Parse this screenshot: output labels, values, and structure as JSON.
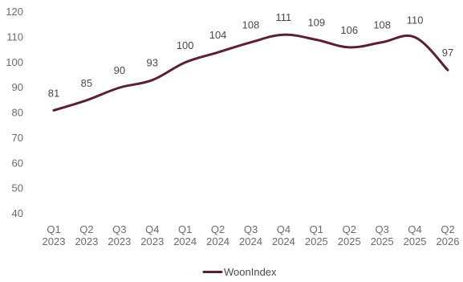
{
  "chart_data": {
    "type": "line",
    "title": "",
    "xlabel": "",
    "ylabel": "",
    "categories": [
      [
        "Q1",
        "2023"
      ],
      [
        "Q2",
        "2023"
      ],
      [
        "Q3",
        "2023"
      ],
      [
        "Q4",
        "2023"
      ],
      [
        "Q1",
        "2024"
      ],
      [
        "Q2",
        "2024"
      ],
      [
        "Q3",
        "2024"
      ],
      [
        "Q4",
        "2024"
      ],
      [
        "Q1",
        "2025"
      ],
      [
        "Q2",
        "2025"
      ],
      [
        "Q3",
        "2025"
      ],
      [
        "Q4",
        "2025"
      ],
      [
        "Q2",
        "2026"
      ]
    ],
    "series": [
      {
        "name": "WoonIndex",
        "values": [
          81,
          85,
          90,
          93,
          100,
          104,
          108,
          111,
          109,
          106,
          108,
          110,
          97
        ],
        "data_labels": [
          "81",
          "85",
          "90",
          "93",
          "100",
          "104",
          "108",
          "111",
          "109",
          "106",
          "108",
          "110",
          "97"
        ],
        "color": "#5b1f2e"
      }
    ],
    "ylim": [
      40,
      120
    ],
    "yticks": [
      "120",
      "110",
      "100",
      "90",
      "80",
      "70",
      "60",
      "50",
      "40"
    ],
    "grid": false,
    "legend": "bottom-center"
  },
  "legend": {
    "label": "WoonIndex"
  }
}
